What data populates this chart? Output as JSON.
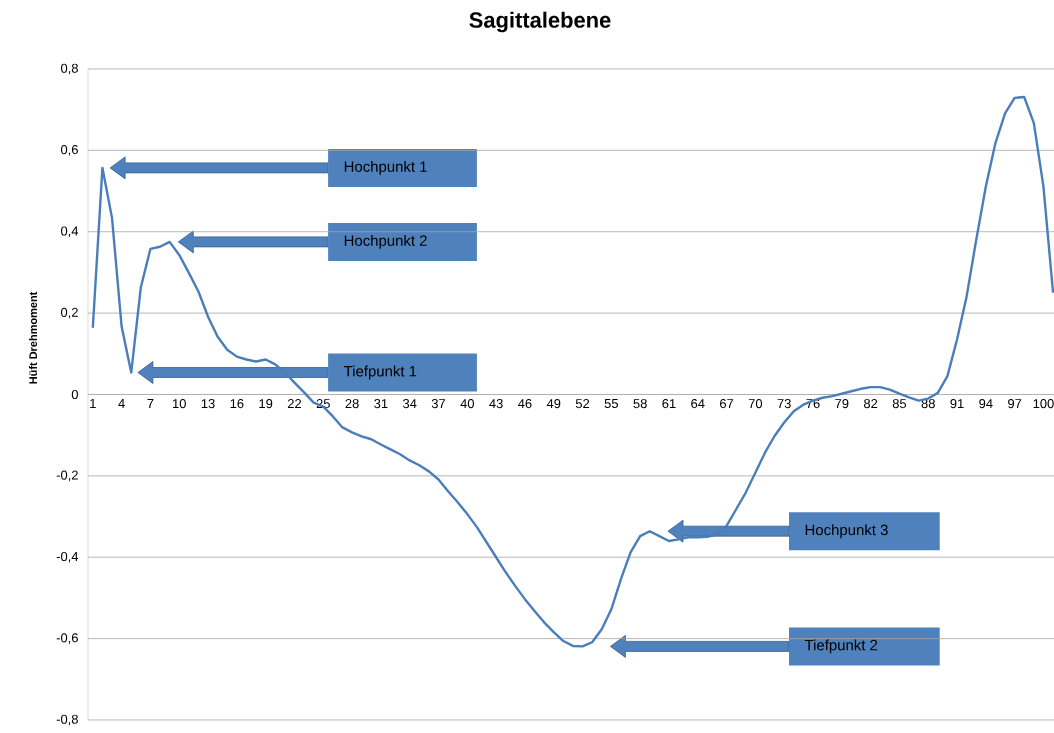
{
  "chart_data": {
    "type": "line",
    "title": "Sagittalebene",
    "ylabel": "Hüft Drehmoment",
    "categories": [
      "1",
      null,
      null,
      "4",
      null,
      null,
      "7",
      null,
      null,
      "10",
      null,
      null,
      "13",
      null,
      null,
      "16",
      null,
      null,
      "19",
      null,
      null,
      "22",
      null,
      null,
      "25",
      null,
      null,
      "28",
      null,
      null,
      "31",
      null,
      null,
      "34",
      null,
      null,
      "37",
      null,
      null,
      "40",
      null,
      null,
      "43",
      null,
      null,
      "46",
      null,
      null,
      "49",
      null,
      null,
      "52",
      null,
      null,
      "55",
      null,
      null,
      "58",
      null,
      null,
      "61",
      null,
      null,
      "64",
      null,
      null,
      "67",
      null,
      null,
      "70",
      null,
      null,
      "73",
      null,
      null,
      "76",
      null,
      null,
      "79",
      null,
      null,
      "82",
      null,
      null,
      "85",
      null,
      null,
      "88",
      null,
      null,
      "91",
      null,
      null,
      "94",
      null,
      null,
      "97",
      null,
      null,
      "100",
      null
    ],
    "series": [
      {
        "color": "#4a7ebb",
        "values": [
          0.164,
          0.557,
          0.434,
          0.167,
          0.054,
          0.263,
          0.358,
          0.363,
          0.375,
          0.343,
          0.299,
          0.253,
          0.191,
          0.142,
          0.11,
          0.093,
          0.086,
          0.081,
          0.086,
          0.074,
          0.054,
          0.029,
          0.005,
          -0.02,
          -0.03,
          -0.054,
          -0.081,
          -0.093,
          -0.103,
          -0.11,
          -0.123,
          -0.135,
          -0.147,
          -0.162,
          -0.174,
          -0.189,
          -0.209,
          -0.238,
          -0.265,
          -0.294,
          -0.326,
          -0.363,
          -0.4,
          -0.437,
          -0.471,
          -0.503,
          -0.532,
          -0.56,
          -0.584,
          -0.606,
          -0.618,
          -0.619,
          -0.609,
          -0.577,
          -0.528,
          -0.454,
          -0.388,
          -0.348,
          -0.336,
          -0.348,
          -0.36,
          -0.356,
          -0.351,
          -0.351,
          -0.35,
          -0.344,
          -0.323,
          -0.282,
          -0.241,
          -0.192,
          -0.143,
          -0.102,
          -0.069,
          -0.041,
          -0.025,
          -0.015,
          -0.008,
          -0.004,
          0.002,
          0.008,
          0.014,
          0.018,
          0.018,
          0.012,
          0.002,
          -0.007,
          -0.015,
          -0.01,
          0.004,
          0.045,
          0.135,
          0.241,
          0.38,
          0.511,
          0.618,
          0.691,
          0.729,
          0.731,
          0.667,
          0.511,
          0.25
        ]
      }
    ],
    "ylim": [
      -0.8,
      0.8
    ],
    "yticks": [
      {
        "value": -0.8,
        "label": "-0,8"
      },
      {
        "value": -0.6,
        "label": "-0,6"
      },
      {
        "value": -0.4,
        "label": "-0,4"
      },
      {
        "value": -0.2,
        "label": "-0,2"
      },
      {
        "value": 0,
        "label": "0"
      },
      {
        "value": 0.2,
        "label": "0,2"
      },
      {
        "value": 0.4,
        "label": "0,4"
      },
      {
        "value": 0.6,
        "label": "0,6"
      },
      {
        "value": 0.8,
        "label": "0,8"
      }
    ],
    "grid": "y",
    "marker": "none",
    "line_style": "solid",
    "annotations": [
      "Hochpunkt 1",
      "Hochpunkt 2",
      "Tiefpunkt 1",
      "Hochpunkt 3",
      "Tiefpunkt 2"
    ]
  }
}
